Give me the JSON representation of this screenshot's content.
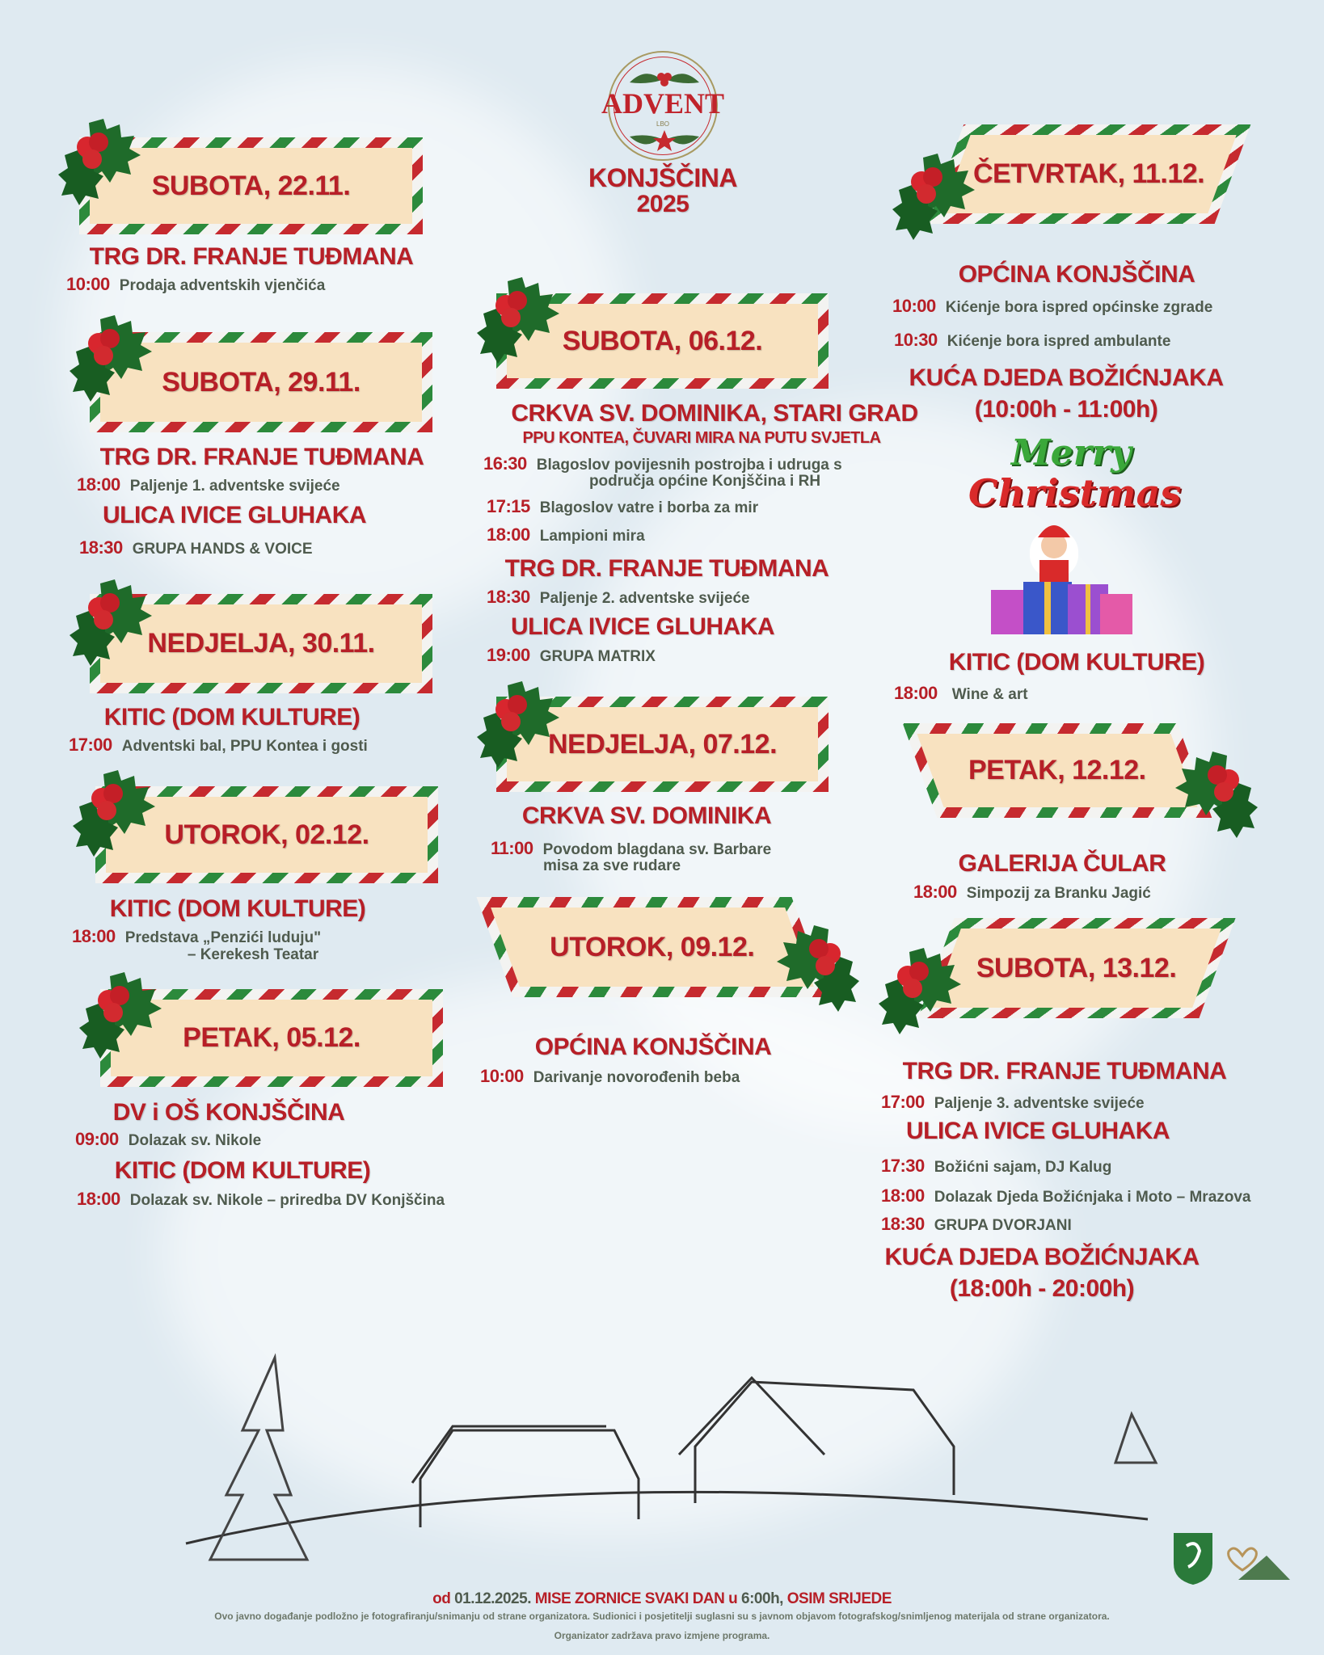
{
  "header": {
    "logo_title": "ADVENT",
    "logo_sub": "LBO",
    "place": "KONJŠČINA",
    "year": "2025"
  },
  "colors": {
    "red": "#b71f27",
    "green": "#2c8a3c",
    "banner_fill": "#f8e2c0",
    "text_gray": "#4f5b4e",
    "background": "#dfeaf1"
  },
  "d1": {
    "date": "SUBOTA, 22.11.",
    "loc1": "TRG DR. FRANJE TUĐMANA",
    "e1_time": "10:00",
    "e1_text": "Prodaja adventskih vjenčića"
  },
  "d2": {
    "date": "SUBOTA, 29.11.",
    "loc1": "TRG DR. FRANJE TUĐMANA",
    "e1_time": "18:00",
    "e1_text": "Paljenje 1. adventske svijeće",
    "loc2": "ULICA IVICE GLUHAKA",
    "e2_time": "18:30",
    "e2_text": "GRUPA HANDS & VOICE"
  },
  "d3": {
    "date": "NEDJELJA, 30.11.",
    "loc1": "KITIC (DOM KULTURE)",
    "e1_time": "17:00",
    "e1_text": "Adventski bal, PPU Kontea i gosti"
  },
  "d4": {
    "date": "UTOROK, 02.12.",
    "loc1": "KITIC (DOM KULTURE)",
    "e1_time": "18:00",
    "e1_text": "Predstava „Penzići luduju\"",
    "e1_text2": "– Kerekesh Teatar"
  },
  "d5": {
    "date": "PETAK, 05.12.",
    "loc1": "DV i OŠ KONJŠČINA",
    "e1_time": "09:00",
    "e1_text": "Dolazak sv. Nikole",
    "loc2": "KITIC (DOM KULTURE)",
    "e2_time": "18:00",
    "e2_text": "Dolazak sv. Nikole – priredba DV Konjščina"
  },
  "d6": {
    "date": "SUBOTA, 06.12.",
    "loc1": "CRKVA SV. DOMINIKA, STARI GRAD",
    "loc1_sub": "PPU KONTEA, ČUVARI MIRA NA PUTU SVJETLA",
    "e1_time": "16:30",
    "e1_text": "Blagoslov povijesnih postrojba i udruga s",
    "e1_text2": "područja općine Konjščina i RH",
    "e2_time": "17:15",
    "e2_text": "Blagoslov vatre i borba za mir",
    "e3_time": "18:00",
    "e3_text": "Lampioni mira",
    "loc2": "TRG DR. FRANJE TUĐMANA",
    "e4_time": "18:30",
    "e4_text": "Paljenje 2. adventske svijeće",
    "loc3": "ULICA IVICE GLUHAKA",
    "e5_time": "19:00",
    "e5_text": "GRUPA MATRIX"
  },
  "d7": {
    "date": "NEDJELJA, 07.12.",
    "loc1": "CRKVA SV. DOMINIKA",
    "e1_time": "11:00",
    "e1_text": "Povodom blagdana sv. Barbare",
    "e1_text2": "misa za sve rudare"
  },
  "d8": {
    "date": "UTOROK, 09.12.",
    "loc1": "OPĆINA KONJŠČINA",
    "e1_time": "10:00",
    "e1_text": "Darivanje novorođenih beba"
  },
  "d9": {
    "date": "ČETVRTAK, 11.12.",
    "loc1": "OPĆINA KONJŠČINA",
    "e1_time": "10:00",
    "e1_text": "Kićenje bora ispred općinske zgrade",
    "e2_time": "10:30",
    "e2_text": "Kićenje bora ispred ambulante",
    "loc2": "KUĆA DJEDA BOŽIĆNJAKA",
    "loc2_hours": "(10:00h - 11:00h)",
    "loc3": "KITIC (DOM KULTURE)",
    "e3_time": "18:00",
    "e3_text": "Wine & art"
  },
  "merry": {
    "line1": "Merry",
    "line2": "Christmas"
  },
  "d10": {
    "date": "PETAK, 12.12.",
    "loc1": "GALERIJA ČULAR",
    "e1_time": "18:00",
    "e1_text": "Simpozij za Branku Jagić"
  },
  "d11": {
    "date": "SUBOTA, 13.12.",
    "loc1": "TRG DR. FRANJE TUĐMANA",
    "e1_time": "17:00",
    "e1_text": "Paljenje 3. adventske svijeće",
    "loc2": "ULICA IVICE GLUHAKA",
    "e2_time": "17:30",
    "e2_text": "Božićni sajam, DJ Kalug",
    "e3_time": "18:00",
    "e3_text": "Dolazak Djeda Božićnjaka i Moto – Mrazova",
    "e4_time": "18:30",
    "e4_text": "GRUPA DVORJANI",
    "loc3": "KUĆA DJEDA BOŽIĆNJAKA",
    "loc3_hours": "(18:00h - 20:00h)"
  },
  "footer": {
    "notice_prefix": "od",
    "notice_date": "01.12.2025.",
    "notice_main": "MISE ZORNICE SVAKI DAN",
    "notice_u": "u",
    "notice_time": "6:00h,",
    "notice_end": "OSIM SRIJEDE",
    "disclaimer": "Ovo javno događanje podložno je fotografiranju/snimanju od strane organizatora. Sudionici i posjetitelji suglasni su s javnom objavom fotografskog/snimljenog materijala od strane organizatora.",
    "rights": "Organizator zadržava pravo izmjene programa."
  }
}
